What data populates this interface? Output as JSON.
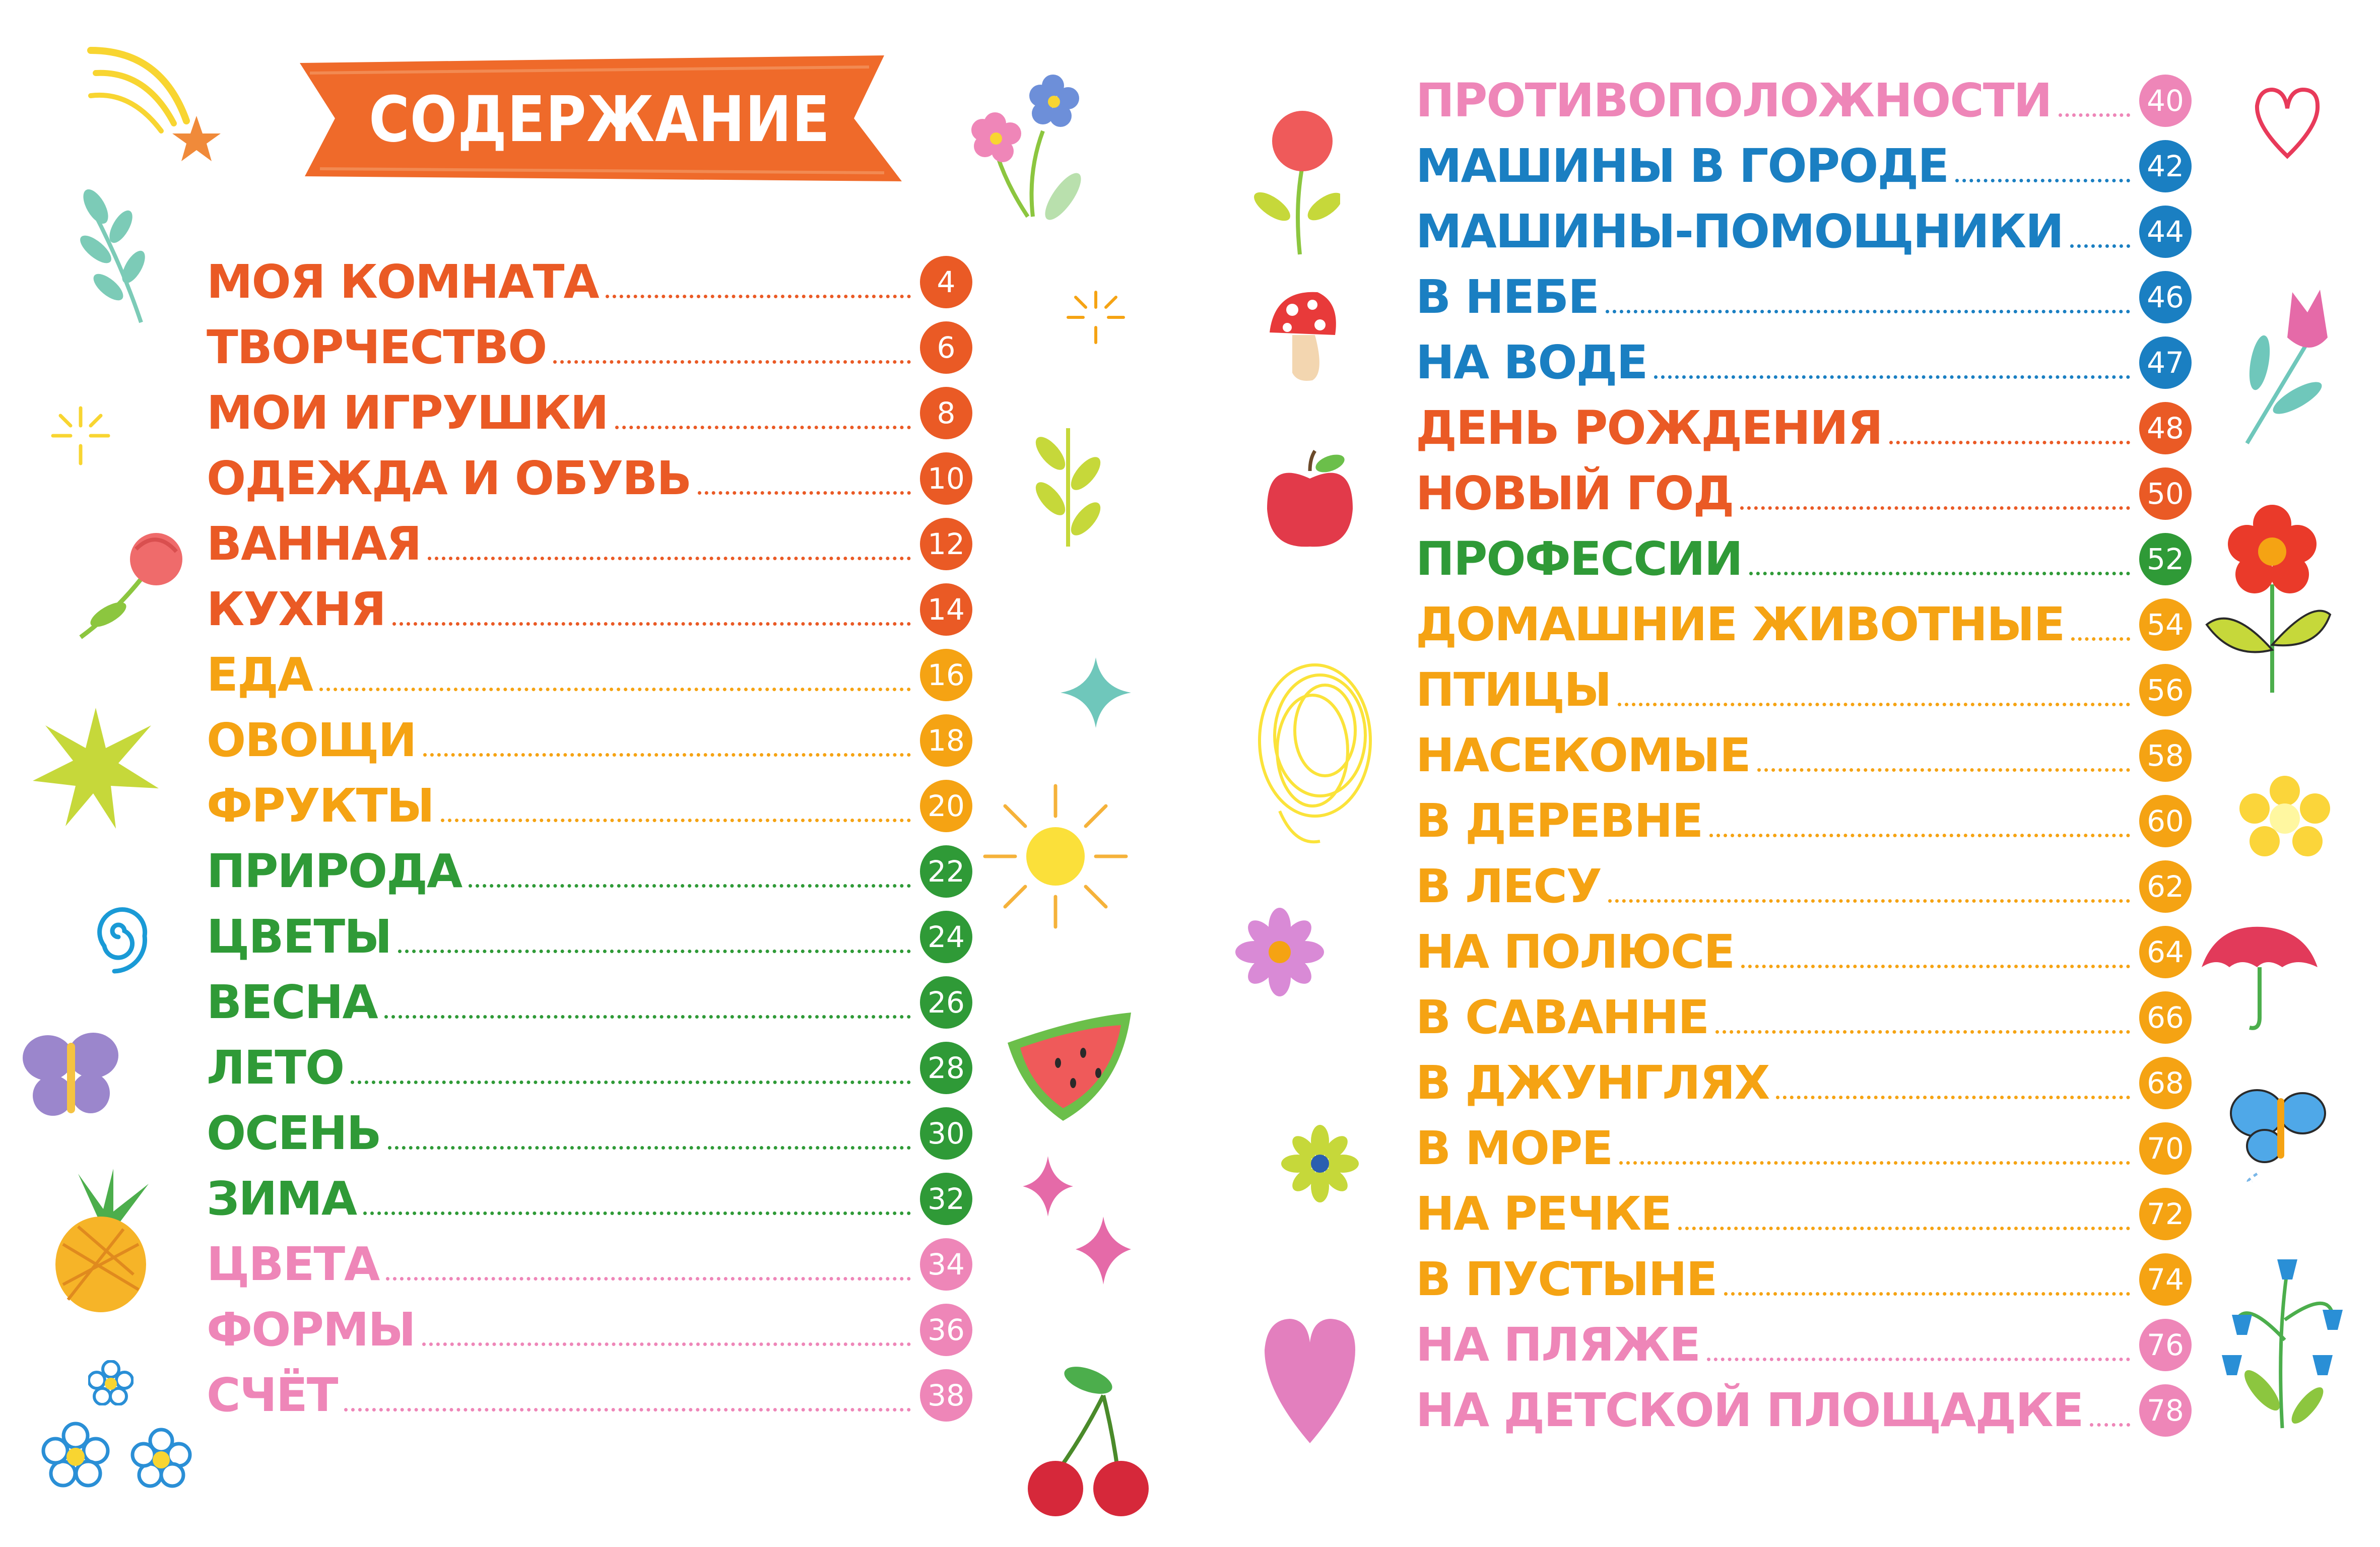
{
  "header": {
    "title": "СОДЕРЖАНИЕ"
  },
  "colors": {
    "banner": "#ef6a2a",
    "red": "#ea5a25",
    "orange": "#f5a313",
    "green": "#2f9a37",
    "pink": "#ee86b8",
    "blue": "#1a7fc2",
    "page_badge_text": "#ffffff"
  },
  "left_column": [
    {
      "title": "МОЯ КОМНАТА",
      "page": "4",
      "color": "#ea5a25"
    },
    {
      "title": "ТВОРЧЕСТВО",
      "page": "6",
      "color": "#ea5a25"
    },
    {
      "title": "МОИ ИГРУШКИ",
      "page": "8",
      "color": "#ea5a25"
    },
    {
      "title": "ОДЕЖДА И ОБУВЬ",
      "page": "10",
      "color": "#ea5a25"
    },
    {
      "title": "ВАННАЯ",
      "page": "12",
      "color": "#ea5a25"
    },
    {
      "title": "КУХНЯ",
      "page": "14",
      "color": "#ea5a25"
    },
    {
      "title": "ЕДА",
      "page": "16",
      "color": "#f5a313"
    },
    {
      "title": "ОВОЩИ",
      "page": "18",
      "color": "#f5a313"
    },
    {
      "title": "ФРУКТЫ",
      "page": "20",
      "color": "#f5a313"
    },
    {
      "title": "ПРИРОДА",
      "page": "22",
      "color": "#2f9a37"
    },
    {
      "title": "ЦВЕТЫ",
      "page": "24",
      "color": "#2f9a37"
    },
    {
      "title": "ВЕСНА",
      "page": "26",
      "color": "#2f9a37"
    },
    {
      "title": "ЛЕТО",
      "page": "28",
      "color": "#2f9a37"
    },
    {
      "title": "ОСЕНЬ",
      "page": "30",
      "color": "#2f9a37"
    },
    {
      "title": "ЗИМА",
      "page": "32",
      "color": "#2f9a37"
    },
    {
      "title": "ЦВЕТА",
      "page": "34",
      "color": "#ee86b8"
    },
    {
      "title": "ФОРМЫ",
      "page": "36",
      "color": "#ee86b8"
    },
    {
      "title": "СЧЁТ",
      "page": "38",
      "color": "#ee86b8"
    }
  ],
  "right_column": [
    {
      "title": "ПРОТИВОПОЛОЖНОСТИ",
      "page": "40",
      "color": "#ee86b8"
    },
    {
      "title": "МАШИНЫ В ГОРОДЕ",
      "page": "42",
      "color": "#1a7fc2"
    },
    {
      "title": "МАШИНЫ-ПОМОЩНИКИ",
      "page": "44",
      "color": "#1a7fc2"
    },
    {
      "title": "В НЕБЕ",
      "page": "46",
      "color": "#1a7fc2"
    },
    {
      "title": "НА ВОДЕ",
      "page": "47",
      "color": "#1a7fc2"
    },
    {
      "title": "ДЕНЬ РОЖДЕНИЯ",
      "page": "48",
      "color": "#ea5a25"
    },
    {
      "title": "НОВЫЙ ГОД",
      "page": "50",
      "color": "#ea5a25"
    },
    {
      "title": "ПРОФЕССИИ",
      "page": "52",
      "color": "#2f9a37"
    },
    {
      "title": "ДОМАШНИЕ ЖИВОТНЫЕ",
      "page": "54",
      "color": "#f5a313"
    },
    {
      "title": "ПТИЦЫ",
      "page": "56",
      "color": "#f5a313"
    },
    {
      "title": "НАСЕКОМЫЕ",
      "page": "58",
      "color": "#f5a313"
    },
    {
      "title": "В ДЕРЕВНЕ",
      "page": "60",
      "color": "#f5a313"
    },
    {
      "title": "В ЛЕСУ",
      "page": "62",
      "color": "#f5a313"
    },
    {
      "title": "НА ПОЛЮСЕ",
      "page": "64",
      "color": "#f5a313"
    },
    {
      "title": "В САВАННЕ",
      "page": "66",
      "color": "#f5a313"
    },
    {
      "title": "В ДЖУНГЛЯХ",
      "page": "68",
      "color": "#f5a313"
    },
    {
      "title": "В МОРЕ",
      "page": "70",
      "color": "#f5a313"
    },
    {
      "title": "НА РЕЧКЕ",
      "page": "72",
      "color": "#f5a313"
    },
    {
      "title": "В ПУСТЫНЕ",
      "page": "74",
      "color": "#f5a313"
    },
    {
      "title": "НА ПЛЯЖЕ",
      "page": "76",
      "color": "#ee86b8"
    },
    {
      "title": "НА ДЕТСКОЙ ПЛОЩАДКЕ",
      "page": "78",
      "color": "#ee86b8"
    }
  ],
  "decorations": [
    "shooting-star-icon",
    "leaf-branch-icon",
    "sparkle-icon",
    "tulip-icon",
    "green-star-icon",
    "spiral-icon",
    "butterfly-icon",
    "pineapple-icon",
    "daisy-icon",
    "flowers-icon",
    "leaf-sprig-icon",
    "teal-star-icon",
    "sun-icon",
    "watermelon-icon",
    "pink-stars-icon",
    "cherries-icon",
    "rose-icon",
    "mushroom-icon",
    "apple-icon",
    "scribble-icon",
    "pink-flower-icon",
    "small-flower-icon",
    "heart-icon",
    "outline-heart-icon",
    "red-flower-icon",
    "yellow-flower-icon",
    "umbrella-icon",
    "blue-butterfly-icon",
    "bluebells-icon"
  ]
}
